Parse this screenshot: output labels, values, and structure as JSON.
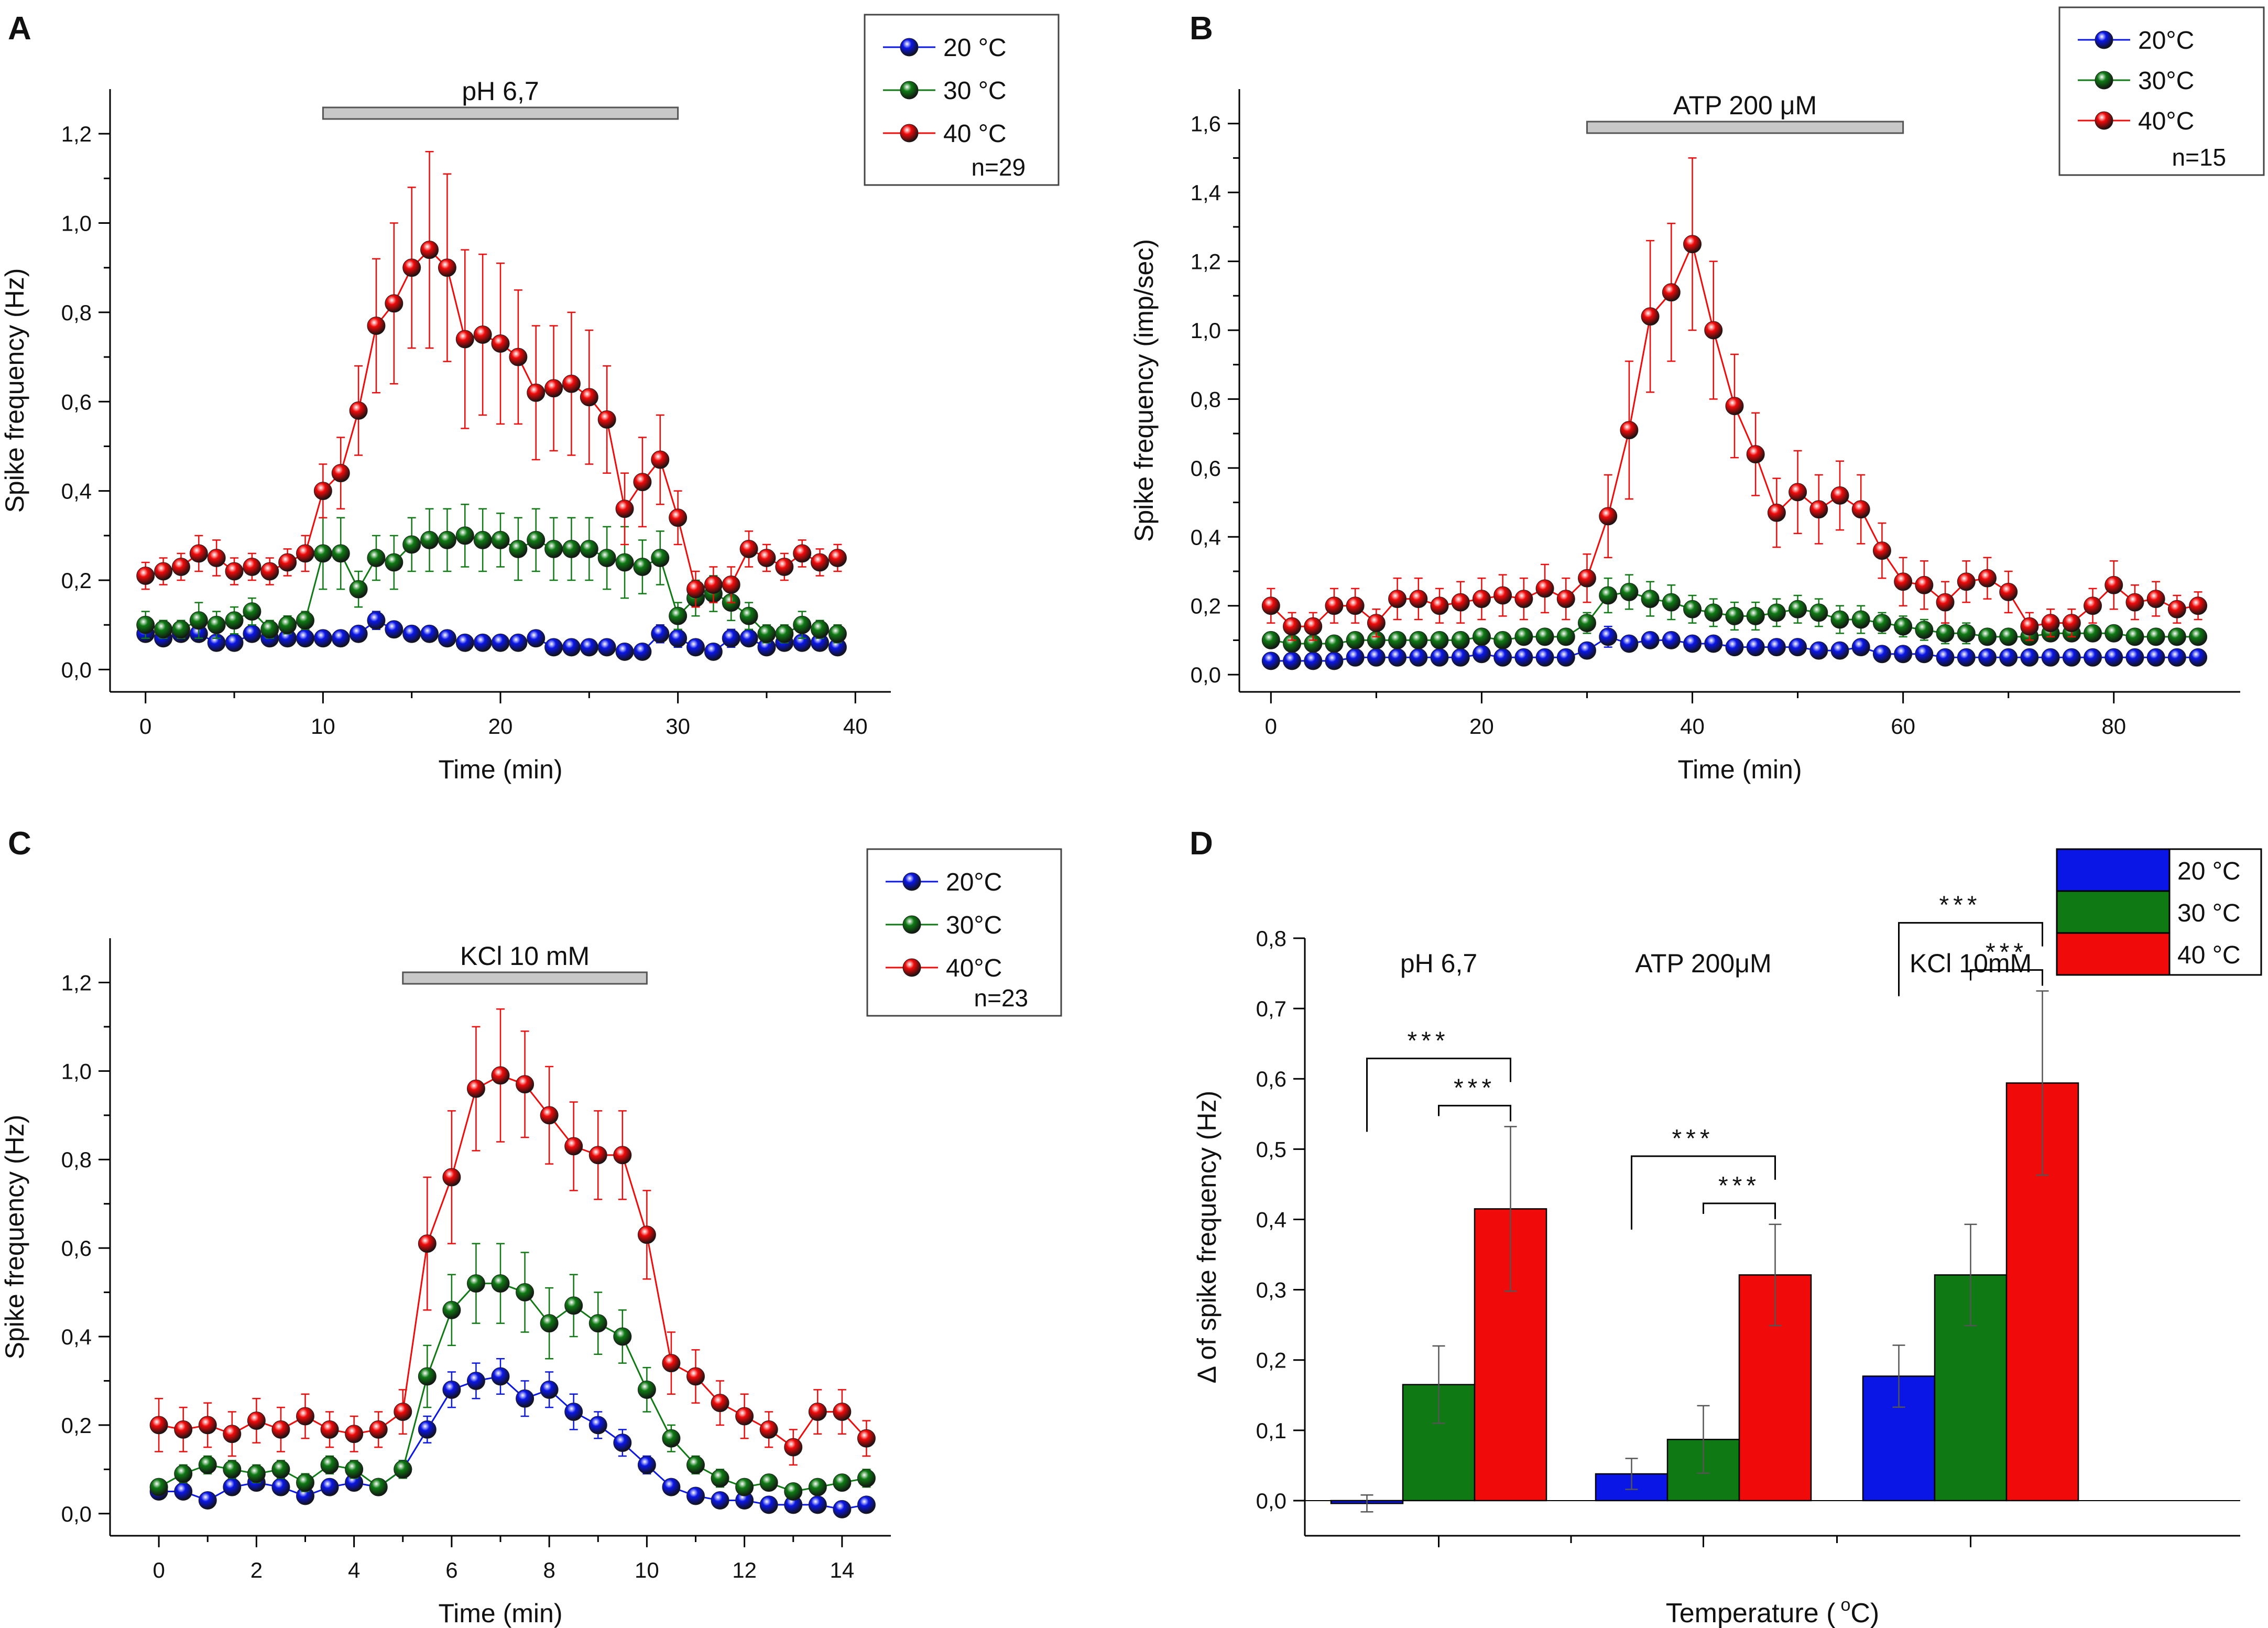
{
  "colors": {
    "blue": "#0a16e6",
    "green": "#0f7a14",
    "red": "#f00a0a",
    "bar": "#c8c8c8",
    "axis": "#000000"
  },
  "chart_data": [
    {
      "panel": "A",
      "type": "scatter",
      "xlabel": "Time (min)",
      "ylabel": "Spike frequency (Hz)",
      "xlim": [
        -2,
        42
      ],
      "ylim": [
        -0.05,
        1.3
      ],
      "xticks": [
        0,
        10,
        20,
        30,
        40
      ],
      "xtick_labels": [
        "0",
        "10",
        "20",
        "30",
        "40"
      ],
      "yticks": [
        0,
        0.2,
        0.4,
        0.6,
        0.8,
        1.0,
        1.2
      ],
      "ytick_labels": [
        "0,0",
        "0,2",
        "0,4",
        "0,6",
        "0,8",
        "1,0",
        "1,2"
      ],
      "stimulus": {
        "label": "pH 6,7",
        "start": 10,
        "end": 30
      },
      "legend_n": "n=29",
      "x": [
        0,
        1,
        2,
        3,
        4,
        5,
        6,
        7,
        8,
        9,
        10,
        11,
        12,
        13,
        14,
        15,
        16,
        17,
        18,
        19,
        20,
        21,
        22,
        23,
        24,
        25,
        26,
        27,
        28,
        29,
        30,
        31,
        32,
        33,
        34,
        35,
        36,
        37,
        38,
        39
      ],
      "series": [
        {
          "name": "20 °C",
          "sup": "o",
          "color": "blue",
          "values": [
            0.08,
            0.07,
            0.08,
            0.08,
            0.06,
            0.06,
            0.08,
            0.07,
            0.07,
            0.07,
            0.07,
            0.07,
            0.08,
            0.11,
            0.09,
            0.08,
            0.08,
            0.07,
            0.06,
            0.06,
            0.06,
            0.06,
            0.07,
            0.05,
            0.05,
            0.05,
            0.05,
            0.04,
            0.04,
            0.08,
            0.07,
            0.05,
            0.04,
            0.07,
            0.07,
            0.05,
            0.06,
            0.06,
            0.06,
            0.05
          ],
          "errors": [
            0.01,
            0.01,
            0.01,
            0.01,
            0.01,
            0.01,
            0.01,
            0.01,
            0.01,
            0.01,
            0.01,
            0.01,
            0.01,
            0.02,
            0.01,
            0.01,
            0.01,
            0.01,
            0.01,
            0.01,
            0.01,
            0.01,
            0.01,
            0.01,
            0.01,
            0.01,
            0.01,
            0.01,
            0.01,
            0.02,
            0.02,
            0.01,
            0.01,
            0.02,
            0.01,
            0.01,
            0.01,
            0.01,
            0.01,
            0.01
          ]
        },
        {
          "name": "30 °C",
          "sup": "o",
          "color": "green",
          "values": [
            0.1,
            0.09,
            0.09,
            0.11,
            0.1,
            0.11,
            0.13,
            0.09,
            0.1,
            0.11,
            0.26,
            0.26,
            0.18,
            0.25,
            0.24,
            0.28,
            0.29,
            0.29,
            0.3,
            0.29,
            0.29,
            0.27,
            0.29,
            0.27,
            0.27,
            0.27,
            0.25,
            0.24,
            0.23,
            0.25,
            0.12,
            0.16,
            0.17,
            0.15,
            0.12,
            0.08,
            0.08,
            0.1,
            0.09,
            0.08
          ],
          "errors": [
            0.03,
            0.02,
            0.02,
            0.04,
            0.03,
            0.03,
            0.03,
            0.02,
            0.02,
            0.02,
            0.08,
            0.08,
            0.04,
            0.05,
            0.06,
            0.06,
            0.07,
            0.07,
            0.07,
            0.07,
            0.06,
            0.07,
            0.07,
            0.07,
            0.07,
            0.07,
            0.07,
            0.08,
            0.06,
            0.06,
            0.03,
            0.04,
            0.04,
            0.04,
            0.03,
            0.02,
            0.02,
            0.03,
            0.02,
            0.02
          ]
        },
        {
          "name": "40 °C",
          "sup": "o",
          "color": "red",
          "values": [
            0.21,
            0.22,
            0.23,
            0.26,
            0.25,
            0.22,
            0.23,
            0.22,
            0.24,
            0.26,
            0.4,
            0.44,
            0.58,
            0.77,
            0.82,
            0.9,
            0.94,
            0.9,
            0.74,
            0.75,
            0.73,
            0.7,
            0.62,
            0.63,
            0.64,
            0.61,
            0.56,
            0.36,
            0.42,
            0.47,
            0.34,
            0.18,
            0.19,
            0.19,
            0.27,
            0.25,
            0.23,
            0.26,
            0.24,
            0.25
          ],
          "errors": [
            0.03,
            0.03,
            0.03,
            0.04,
            0.04,
            0.03,
            0.03,
            0.03,
            0.03,
            0.04,
            0.06,
            0.08,
            0.1,
            0.15,
            0.18,
            0.18,
            0.22,
            0.21,
            0.2,
            0.18,
            0.18,
            0.15,
            0.15,
            0.14,
            0.16,
            0.15,
            0.12,
            0.08,
            0.1,
            0.1,
            0.06,
            0.04,
            0.04,
            0.04,
            0.04,
            0.03,
            0.03,
            0.03,
            0.03,
            0.03
          ]
        }
      ]
    },
    {
      "panel": "B",
      "type": "scatter",
      "xlabel": "Time (min)",
      "ylabel": "Spike frequency (imp/sec)",
      "xlim": [
        -3,
        92
      ],
      "ylim": [
        -0.05,
        1.7
      ],
      "xticks": [
        0,
        20,
        40,
        60,
        80
      ],
      "xtick_labels": [
        "0",
        "20",
        "40",
        "60",
        "80"
      ],
      "yticks": [
        0,
        0.2,
        0.4,
        0.6,
        0.8,
        1.0,
        1.2,
        1.4,
        1.6
      ],
      "ytick_labels": [
        "0,0",
        "0,2",
        "0,4",
        "0,6",
        "0,8",
        "1,0",
        "1,2",
        "1,4",
        "1,6"
      ],
      "stimulus": {
        "label": "ATP 200 μM",
        "start": 30,
        "end": 60
      },
      "legend_n": "n=15",
      "x": [
        0,
        2,
        4,
        6,
        8,
        10,
        12,
        14,
        16,
        18,
        20,
        22,
        24,
        26,
        28,
        30,
        32,
        34,
        36,
        38,
        40,
        42,
        44,
        46,
        48,
        50,
        52,
        54,
        56,
        58,
        60,
        62,
        64,
        66,
        68,
        70,
        72,
        74,
        76,
        78,
        80,
        82,
        84,
        86,
        88
      ],
      "series": [
        {
          "name": "20°C",
          "sup": "o",
          "color": "blue",
          "values": [
            0.04,
            0.04,
            0.04,
            0.04,
            0.05,
            0.05,
            0.05,
            0.05,
            0.05,
            0.05,
            0.06,
            0.05,
            0.05,
            0.05,
            0.05,
            0.07,
            0.11,
            0.09,
            0.1,
            0.1,
            0.09,
            0.09,
            0.08,
            0.08,
            0.08,
            0.08,
            0.07,
            0.07,
            0.08,
            0.06,
            0.06,
            0.06,
            0.05,
            0.05,
            0.05,
            0.05,
            0.05,
            0.05,
            0.05,
            0.05,
            0.05,
            0.05,
            0.05,
            0.05,
            0.05
          ],
          "errors": [
            0.01,
            0.01,
            0.01,
            0.01,
            0.01,
            0.01,
            0.01,
            0.01,
            0.01,
            0.01,
            0.01,
            0.01,
            0.01,
            0.01,
            0.01,
            0.02,
            0.03,
            0.02,
            0.02,
            0.02,
            0.02,
            0.02,
            0.02,
            0.02,
            0.02,
            0.02,
            0.02,
            0.02,
            0.02,
            0.01,
            0.01,
            0.01,
            0.01,
            0.01,
            0.01,
            0.01,
            0.01,
            0.01,
            0.01,
            0.01,
            0.01,
            0.01,
            0.01,
            0.01,
            0.01
          ]
        },
        {
          "name": "30°C",
          "sup": "o",
          "color": "green",
          "values": [
            0.1,
            0.09,
            0.09,
            0.09,
            0.1,
            0.1,
            0.1,
            0.1,
            0.1,
            0.1,
            0.11,
            0.1,
            0.11,
            0.11,
            0.11,
            0.15,
            0.23,
            0.24,
            0.22,
            0.21,
            0.19,
            0.18,
            0.17,
            0.17,
            0.18,
            0.19,
            0.18,
            0.16,
            0.16,
            0.15,
            0.14,
            0.13,
            0.12,
            0.12,
            0.11,
            0.11,
            0.11,
            0.12,
            0.12,
            0.12,
            0.12,
            0.11,
            0.11,
            0.11,
            0.11
          ],
          "errors": [
            0.02,
            0.02,
            0.02,
            0.02,
            0.02,
            0.02,
            0.02,
            0.02,
            0.02,
            0.02,
            0.02,
            0.02,
            0.02,
            0.02,
            0.02,
            0.03,
            0.05,
            0.05,
            0.05,
            0.05,
            0.04,
            0.04,
            0.04,
            0.04,
            0.04,
            0.04,
            0.04,
            0.04,
            0.04,
            0.03,
            0.03,
            0.03,
            0.03,
            0.03,
            0.02,
            0.02,
            0.02,
            0.02,
            0.02,
            0.02,
            0.02,
            0.02,
            0.02,
            0.02,
            0.02
          ]
        },
        {
          "name": "40°C",
          "sup": "o",
          "color": "red",
          "values": [
            0.2,
            0.14,
            0.14,
            0.2,
            0.2,
            0.15,
            0.22,
            0.22,
            0.2,
            0.21,
            0.22,
            0.23,
            0.22,
            0.25,
            0.22,
            0.28,
            0.46,
            0.71,
            1.04,
            1.11,
            1.25,
            1.0,
            0.78,
            0.64,
            0.47,
            0.53,
            0.48,
            0.52,
            0.48,
            0.36,
            0.27,
            0.26,
            0.21,
            0.27,
            0.28,
            0.24,
            0.14,
            0.15,
            0.15,
            0.2,
            0.26,
            0.21,
            0.22,
            0.19,
            0.2
          ],
          "errors": [
            0.05,
            0.04,
            0.04,
            0.05,
            0.05,
            0.04,
            0.06,
            0.06,
            0.05,
            0.06,
            0.06,
            0.06,
            0.06,
            0.07,
            0.06,
            0.07,
            0.12,
            0.2,
            0.22,
            0.2,
            0.25,
            0.2,
            0.15,
            0.12,
            0.1,
            0.12,
            0.1,
            0.1,
            0.1,
            0.08,
            0.07,
            0.07,
            0.06,
            0.06,
            0.06,
            0.06,
            0.04,
            0.04,
            0.04,
            0.05,
            0.07,
            0.05,
            0.05,
            0.04,
            0.04
          ]
        }
      ]
    },
    {
      "panel": "C",
      "type": "scatter",
      "xlabel": "Time (min)",
      "ylabel": "Spike frequency (Hz)",
      "xlim": [
        -1,
        15
      ],
      "ylim": [
        -0.05,
        1.3
      ],
      "xticks": [
        0,
        2,
        4,
        6,
        8,
        10,
        12,
        14
      ],
      "xtick_labels": [
        "0",
        "2",
        "4",
        "6",
        "8",
        "10",
        "12",
        "14"
      ],
      "yticks": [
        0,
        0.2,
        0.4,
        0.6,
        0.8,
        1.0,
        1.2
      ],
      "ytick_labels": [
        "0,0",
        "0,2",
        "0,4",
        "0,6",
        "0,8",
        "1,0",
        "1,2"
      ],
      "stimulus": {
        "label": "KCl 10 mM",
        "start": 5,
        "end": 10
      },
      "legend_n": "n=23",
      "x": [
        0,
        0.5,
        1,
        1.5,
        2,
        2.5,
        3,
        3.5,
        4,
        4.5,
        5,
        5.5,
        6,
        6.5,
        7,
        7.5,
        8,
        8.5,
        9,
        9.5,
        10,
        10.5,
        11,
        11.5,
        12,
        12.5,
        13,
        13.5,
        14,
        14.5
      ],
      "series": [
        {
          "name": "20°C",
          "sup": "o",
          "color": "blue",
          "values": [
            0.05,
            0.05,
            0.03,
            0.06,
            0.07,
            0.06,
            0.04,
            0.06,
            0.07,
            0.06,
            0.1,
            0.19,
            0.28,
            0.3,
            0.31,
            0.26,
            0.28,
            0.23,
            0.2,
            0.16,
            0.11,
            0.06,
            0.04,
            0.03,
            0.03,
            0.02,
            0.02,
            0.02,
            0.01,
            0.02
          ],
          "errors": [
            0.01,
            0.01,
            0.01,
            0.01,
            0.01,
            0.01,
            0.01,
            0.01,
            0.01,
            0.01,
            0.02,
            0.03,
            0.04,
            0.04,
            0.04,
            0.04,
            0.04,
            0.04,
            0.03,
            0.03,
            0.02,
            0.01,
            0.01,
            0.01,
            0.01,
            0.01,
            0.01,
            0.01,
            0.01,
            0.01
          ]
        },
        {
          "name": "30°C",
          "sup": "o",
          "color": "green",
          "values": [
            0.06,
            0.09,
            0.11,
            0.1,
            0.09,
            0.1,
            0.07,
            0.11,
            0.1,
            0.06,
            0.1,
            0.31,
            0.46,
            0.52,
            0.52,
            0.5,
            0.43,
            0.47,
            0.43,
            0.4,
            0.28,
            0.17,
            0.11,
            0.08,
            0.06,
            0.07,
            0.05,
            0.06,
            0.07,
            0.08
          ],
          "errors": [
            0.01,
            0.02,
            0.02,
            0.02,
            0.02,
            0.02,
            0.02,
            0.02,
            0.02,
            0.01,
            0.02,
            0.07,
            0.08,
            0.09,
            0.09,
            0.09,
            0.08,
            0.07,
            0.07,
            0.06,
            0.05,
            0.03,
            0.02,
            0.02,
            0.01,
            0.01,
            0.01,
            0.01,
            0.01,
            0.02
          ]
        },
        {
          "name": "40°C",
          "sup": "o",
          "color": "red",
          "values": [
            0.2,
            0.19,
            0.2,
            0.18,
            0.21,
            0.19,
            0.22,
            0.19,
            0.18,
            0.19,
            0.23,
            0.61,
            0.76,
            0.96,
            0.99,
            0.97,
            0.9,
            0.83,
            0.81,
            0.81,
            0.63,
            0.34,
            0.31,
            0.25,
            0.22,
            0.19,
            0.15,
            0.23,
            0.23,
            0.17
          ],
          "errors": [
            0.06,
            0.05,
            0.05,
            0.05,
            0.05,
            0.05,
            0.05,
            0.04,
            0.04,
            0.04,
            0.05,
            0.15,
            0.15,
            0.14,
            0.15,
            0.12,
            0.11,
            0.1,
            0.1,
            0.1,
            0.1,
            0.07,
            0.06,
            0.05,
            0.05,
            0.04,
            0.04,
            0.05,
            0.05,
            0.04
          ]
        }
      ]
    },
    {
      "panel": "D",
      "type": "bar",
      "xlabel": "Temperature (  °C)",
      "xlabel_main": "Temperature (",
      "xlabel_sup": "o",
      "xlabel_end": "C)",
      "ylabel": "Δ of spike frequency (Hz)",
      "ylim": [
        -0.05,
        0.8
      ],
      "yticks": [
        0,
        0.1,
        0.2,
        0.3,
        0.4,
        0.5,
        0.6,
        0.7,
        0.8
      ],
      "ytick_labels": [
        "0,0",
        "0,1",
        "0,2",
        "0,3",
        "0,4",
        "0,5",
        "0,6",
        "0,7",
        "0,8"
      ],
      "groups": [
        "pH 6,7",
        "ATP 200μM",
        "KCl 10mM"
      ],
      "series": [
        {
          "name": "20 °C",
          "color": "blue",
          "values": [
            -0.004,
            0.038,
            0.177
          ],
          "errors": [
            0.012,
            0.022,
            0.044
          ]
        },
        {
          "name": "30 °C",
          "color": "green",
          "values": [
            0.165,
            0.087,
            0.321
          ],
          "errors": [
            0.055,
            0.048,
            0.072
          ]
        },
        {
          "name": "40 °C",
          "color": "red",
          "values": [
            0.415,
            0.321,
            0.594
          ],
          "errors": [
            0.117,
            0.072,
            0.131
          ]
        }
      ],
      "significance": "***"
    }
  ],
  "panel_labels": [
    "A",
    "B",
    "C",
    "D"
  ]
}
